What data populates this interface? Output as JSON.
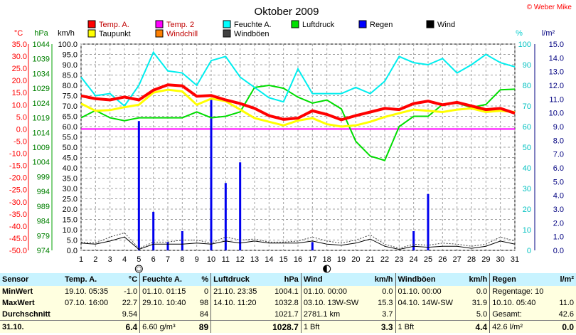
{
  "chart_data": {
    "type": "line",
    "title": "Oktober 2009",
    "watermark": "© Weber Mike",
    "x": [
      1,
      2,
      3,
      4,
      5,
      6,
      7,
      8,
      9,
      10,
      11,
      12,
      13,
      14,
      15,
      16,
      17,
      18,
      19,
      20,
      21,
      22,
      23,
      24,
      25,
      26,
      27,
      28,
      29,
      30,
      31
    ],
    "xlim": [
      1,
      31
    ],
    "grid": true,
    "left_axes": [
      {
        "label": "°C",
        "color": "#ff0000",
        "ticks": [
          "35.0",
          "30.0",
          "25.0",
          "20.0",
          "15.0",
          "10.0",
          "5.0",
          "0.0",
          "-5.0",
          "-10.0",
          "-15.0",
          "-20.0",
          "-25.0",
          "-30.0",
          "-35.0",
          "-40.0",
          "-45.0",
          "-50.0"
        ]
      },
      {
        "label": "hPa",
        "color": "#008000",
        "ticks": [
          "1044",
          "1039",
          "1034",
          "1029",
          "1024",
          "1019",
          "1014",
          "1009",
          "1004",
          "999",
          "994",
          "989",
          "984",
          "979",
          "974"
        ]
      },
      {
        "label": "km/h",
        "color": "#000000",
        "ticks": [
          "100.0",
          "95.0",
          "90.0",
          "85.0",
          "80.0",
          "75.0",
          "70.0",
          "65.0",
          "60.0",
          "55.0",
          "50.0",
          "45.0",
          "40.0",
          "35.0",
          "30.0",
          "25.0",
          "20.0",
          "15.0",
          "10.0",
          "5.0",
          "0.0"
        ]
      }
    ],
    "right_axes": [
      {
        "label": "%",
        "color": "#00cccc",
        "ticks": [
          "100",
          "90",
          "80",
          "70",
          "60",
          "50",
          "40",
          "30",
          "20",
          "10",
          "0"
        ]
      },
      {
        "label": "l/m²",
        "color": "#000080",
        "ticks": [
          "15.0",
          "14.0",
          "13.0",
          "12.0",
          "11.0",
          "10.0",
          "9.0",
          "8.0",
          "7.0",
          "6.0",
          "5.0",
          "4.0",
          "3.0",
          "2.0",
          "1.0",
          "0.0"
        ]
      }
    ],
    "special_markers": [
      {
        "x": 5,
        "symbol": "full-moon"
      },
      {
        "x": 18,
        "symbol": "new-moon"
      }
    ],
    "legend": [
      {
        "name": "Temp. A.",
        "color": "#ff0000"
      },
      {
        "name": "Temp. 2",
        "color": "#ff00ff"
      },
      {
        "name": "Feuchte A.",
        "color": "#00ffff"
      },
      {
        "name": "Luftdruck",
        "color": "#00e000"
      },
      {
        "name": "Regen",
        "color": "#0000ff"
      },
      {
        "name": "Wind",
        "color": "#000000"
      },
      {
        "name": "Taupunkt",
        "color": "#ffff00"
      },
      {
        "name": "Windchill",
        "color": "#ff8000"
      },
      {
        "name": "Windböen",
        "color": "#404040"
      }
    ],
    "series": {
      "temp_a": [
        13.7,
        12.5,
        12.0,
        13.2,
        12.0,
        16.0,
        18.2,
        17.8,
        13.5,
        13.8,
        12.0,
        10.5,
        8.5,
        5.5,
        4.0,
        4.5,
        7.5,
        6.0,
        3.8,
        5.5,
        7.0,
        8.5,
        8.0,
        10.5,
        11.5,
        10.0,
        11.0,
        9.5,
        8.0,
        8.5,
        6.5
      ],
      "dewpoint": [
        10.5,
        7.5,
        7.8,
        9.0,
        10.0,
        15.0,
        16.2,
        15.5,
        10.0,
        12.5,
        11.5,
        8.0,
        4.5,
        3.0,
        1.5,
        3.5,
        4.5,
        2.0,
        1.0,
        1.5,
        3.0,
        5.0,
        6.5,
        8.0,
        7.5,
        7.0,
        8.0,
        8.5,
        7.0,
        7.5,
        7.0
      ],
      "humidity": [
        84,
        75,
        76,
        70,
        80,
        96,
        87,
        86,
        80,
        92,
        94,
        84,
        79,
        74,
        72,
        88,
        76,
        76,
        76,
        79,
        76,
        82,
        94,
        91,
        90,
        93,
        86,
        90,
        95,
        91,
        89
      ],
      "pressure": [
        1019,
        1021.5,
        1019,
        1018,
        1019,
        1019,
        1019,
        1019,
        1021,
        1019,
        1019.5,
        1021,
        1029.3,
        1030,
        1029,
        1026,
        1024,
        1025,
        1022,
        1011,
        1006,
        1004.5,
        1016,
        1019.5,
        1019.5,
        1023.5,
        1024,
        1022.5,
        1023.5,
        1028.5,
        1028.7
      ],
      "wind_avg": [
        3.5,
        3.0,
        4.5,
        6.5,
        0.5,
        3.0,
        3.0,
        3.0,
        3.5,
        3.0,
        4.5,
        3.5,
        4.5,
        3.5,
        3.5,
        3.5,
        4.5,
        3.0,
        2.5,
        3.5,
        5.5,
        2.0,
        0.5,
        2.0,
        1.5,
        2.0,
        2.0,
        1.0,
        2.0,
        4.5,
        3.0
      ],
      "wind_gust": [
        4.0,
        3.5,
        6.5,
        8.5,
        1.0,
        4.0,
        4.0,
        5.0,
        5.0,
        3.5,
        6.5,
        5.0,
        5.5,
        4.0,
        4.0,
        4.5,
        6.5,
        4.5,
        3.5,
        5.0,
        7.5,
        3.0,
        1.0,
        3.0,
        2.5,
        3.5,
        3.0,
        2.0,
        3.0,
        6.5,
        4.5
      ],
      "temp2": 0.0
    },
    "rain_bars": [
      {
        "x": 5,
        "value": 9.4
      },
      {
        "x": 6,
        "value": 2.8
      },
      {
        "x": 7,
        "value": 0.6
      },
      {
        "x": 8,
        "value": 1.4
      },
      {
        "x": 10,
        "value": 11.0
      },
      {
        "x": 11,
        "value": 4.9
      },
      {
        "x": 12,
        "value": 6.4
      },
      {
        "x": 17,
        "value": 0.6
      },
      {
        "x": 24,
        "value": 1.4
      },
      {
        "x": 25,
        "value": 4.1
      }
    ]
  },
  "stats": {
    "headers": {
      "sensor": "Sensor",
      "temp": "Temp. A.",
      "temp_unit": "°C",
      "hum": "Feuchte A.",
      "hum_unit": "%",
      "press": "Luftdruck",
      "press_unit": "hPa",
      "wind": "Wind",
      "wind_unit": "km/h",
      "gust": "Windböen",
      "gust_unit": "km/h",
      "rain": "Regen",
      "rain_unit": "l/m²"
    },
    "rows": [
      {
        "label": "MinWert",
        "temp_time": "19.10.  05:35",
        "temp_val": "-1.0",
        "hum_time": "01.10.  01:15",
        "hum_val": "0",
        "press_time": "21.10.  23:35",
        "press_val": "1004.1",
        "wind_time": "01.10.  00:00",
        "wind_val": "0.0",
        "gust_time": "01.10.  00:00",
        "gust_val": "0.0",
        "rain_text": "Regentage: 10",
        "rain_val": ""
      },
      {
        "label": "MaxWert",
        "temp_time": "07.10.  16:00",
        "temp_val": "22.7",
        "hum_time": "29.10.  10:40",
        "hum_val": "98",
        "press_time": "14.10.  11:20",
        "press_val": "1032.8",
        "wind_time": "03.10.  13W-SW",
        "wind_val": "15.3",
        "gust_time": "04.10.  14W-SW",
        "gust_val": "31.9",
        "rain_text": "10.10.  05:40",
        "rain_val": "11.0"
      },
      {
        "label": "Durchschnitt",
        "temp_time": "",
        "temp_val": "9.54",
        "hum_time": "",
        "hum_val": "84",
        "press_time": "",
        "press_val": "1021.7",
        "wind_time": "2781.1 km",
        "wind_val": "3.7",
        "gust_time": "",
        "gust_val": "5.0",
        "rain_text": "Gesamt:",
        "rain_val": "42.6"
      },
      {
        "label": "31.10.",
        "temp_time": "",
        "temp_val": "6.4",
        "hum_time": "6.60 g/m³",
        "hum_val": "89",
        "press_time": "",
        "press_val": "1028.7",
        "wind_time": "1 Bft",
        "wind_val": "3.3",
        "gust_time": "1 Bft",
        "gust_val": "4.4",
        "rain_text": "42.6 l/m²",
        "rain_val": "0.0"
      }
    ]
  }
}
